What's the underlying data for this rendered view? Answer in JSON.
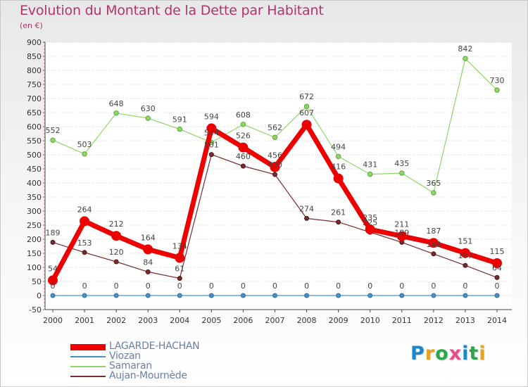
{
  "title": "Evolution du Montant de la Dette par Habitant",
  "subtitle": "(en €)",
  "logo_text": "Proxiti",
  "logo_colors": [
    "#1f86c8",
    "#e8a21c",
    "#2aa84a",
    "#e84b8a",
    "#1f86c8",
    "#2aa84a",
    "#e8a21c"
  ],
  "chart_data": {
    "type": "line",
    "title": "Evolution du Montant de la Dette par Habitant",
    "subtitle": "(en €)",
    "xlabel": "",
    "ylabel": "",
    "x": [
      2000,
      2001,
      2002,
      2003,
      2004,
      2005,
      2006,
      2007,
      2008,
      2009,
      2010,
      2011,
      2012,
      2013,
      2014
    ],
    "ylim": [
      -50,
      900
    ],
    "yticks": [
      -50,
      0,
      50,
      100,
      150,
      200,
      250,
      300,
      350,
      400,
      450,
      500,
      550,
      600,
      650,
      700,
      750,
      800,
      850,
      900
    ],
    "grid": "horizontal",
    "legend_position": "bottom-left",
    "series": [
      {
        "name": "LAGARDE-HACHAN",
        "color": "#ee0000",
        "values": [
          54,
          264,
          212,
          164,
          134,
          594,
          526,
          456,
          607,
          416,
          235,
          211,
          187,
          151,
          115
        ]
      },
      {
        "name": "Viozan",
        "color": "#4a90c8",
        "values": [
          0,
          0,
          0,
          0,
          0,
          0,
          0,
          0,
          0,
          0,
          0,
          0,
          0,
          0,
          0
        ]
      },
      {
        "name": "Samaran",
        "color": "#8fd668",
        "values": [
          552,
          503,
          648,
          630,
          591,
          544,
          608,
          562,
          672,
          494,
          431,
          435,
          365,
          842,
          730
        ]
      },
      {
        "name": "Aujan-Mournède",
        "color": "#7a2b2b",
        "values": [
          189,
          153,
          120,
          84,
          61,
          501,
          460,
          430,
          274,
          261,
          225,
          189,
          148,
          107,
          64
        ]
      }
    ]
  }
}
